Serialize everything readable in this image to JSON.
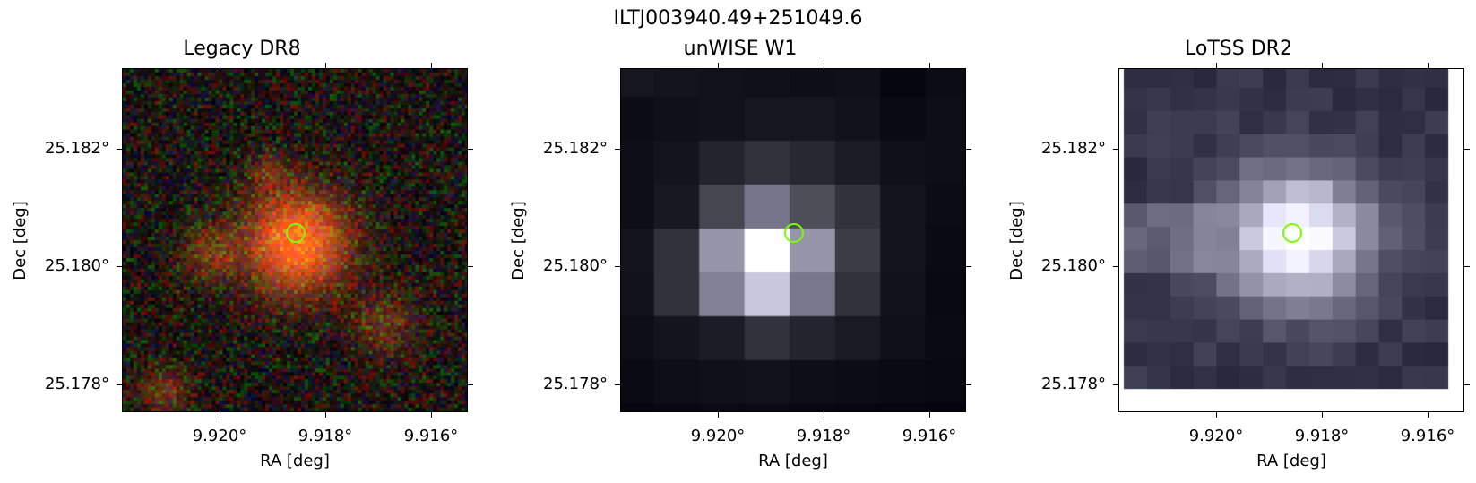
{
  "figure": {
    "title": "ILTJ003940.49+251049.6",
    "marker_color": "#7cfc00"
  },
  "panels": [
    {
      "title": "Legacy DR8",
      "xlabel": "RA [deg]",
      "ylabel": "Dec [deg]",
      "x_ticks": [
        "9.920°",
        "9.918°",
        "9.916°"
      ],
      "y_ticks": [
        "25.182°",
        "25.180°",
        "25.178°"
      ],
      "image": "rgb-optical-noise-red-source"
    },
    {
      "title": "unWISE W1",
      "xlabel": "RA [deg]",
      "ylabel": "Dec [deg]",
      "x_ticks": [
        "9.920°",
        "9.918°",
        "9.916°"
      ],
      "y_ticks": [
        "25.182°",
        "25.180°",
        "25.178°"
      ],
      "image": "grayscale-coarse-pixels"
    },
    {
      "title": "LoTSS DR2",
      "xlabel": "RA [deg]",
      "ylabel": "Dec [deg]",
      "x_ticks": [
        "9.920°",
        "9.918°",
        "9.916°"
      ],
      "y_ticks": [
        "25.182°",
        "25.180°",
        "25.178°"
      ],
      "image": "grayscale-radio-pixels"
    }
  ]
}
